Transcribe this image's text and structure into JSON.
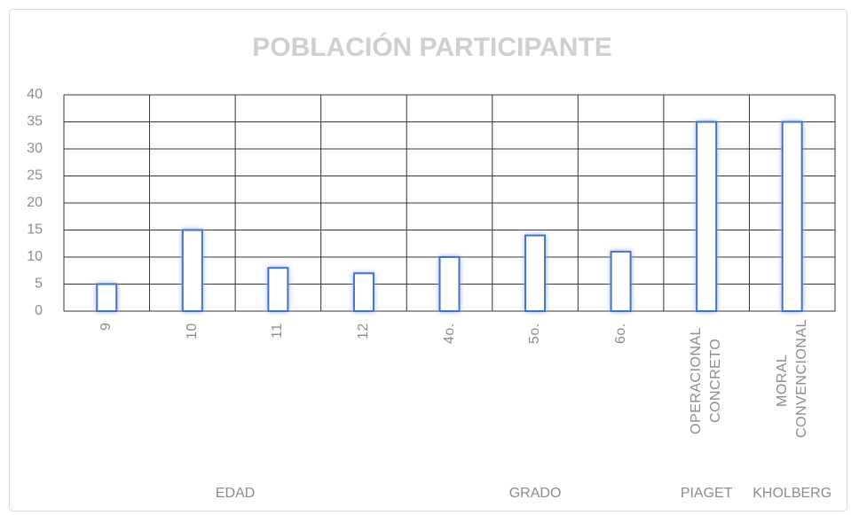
{
  "chart_data": {
    "type": "bar",
    "title": "POBLACIÓN PARTICIPANTE",
    "categories": [
      "9",
      "10",
      "11",
      "12",
      "4o.",
      "5o.",
      "6o.",
      "OPERACIONAL CONCRETO",
      "MORAL CONVENCIONAL"
    ],
    "category_groups": [
      "EDAD",
      "EDAD",
      "EDAD",
      "EDAD",
      "GRADO",
      "GRADO",
      "GRADO",
      "PIAGET",
      "KHOLBERG"
    ],
    "values": [
      5,
      15,
      8,
      7,
      10,
      14,
      11,
      35,
      35
    ],
    "color": "#4472c4",
    "ylim": [
      0,
      40
    ],
    "yticks": [
      0,
      5,
      10,
      15,
      20,
      25,
      30,
      35,
      40
    ],
    "grid": true
  }
}
